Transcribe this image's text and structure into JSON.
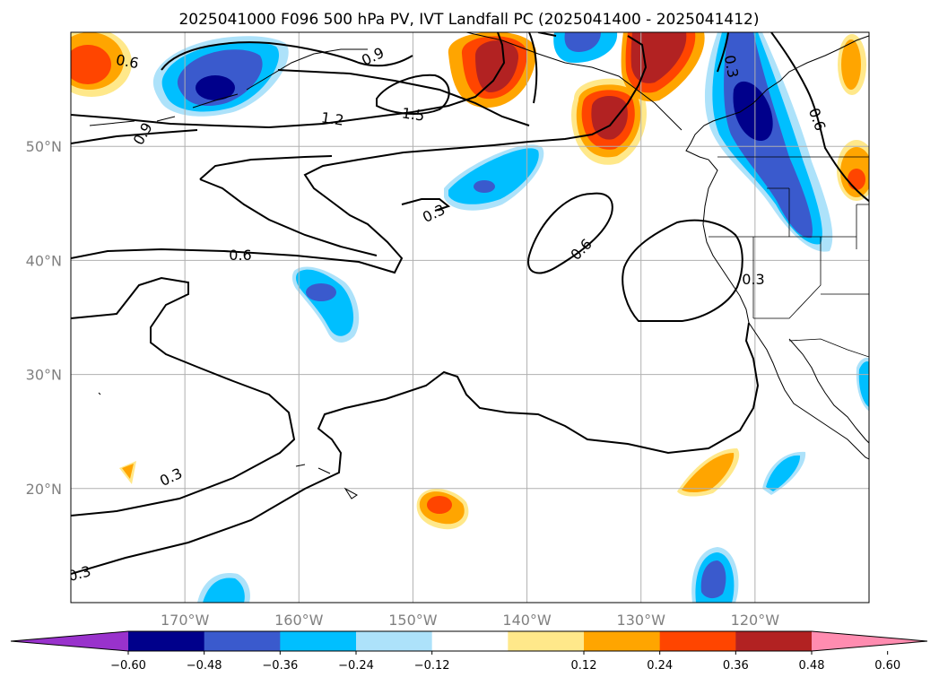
{
  "title": "2025041000 F096 500 hPa PV, IVT Landfall PC (2025041400 - 2025041412)",
  "map_extent": {
    "lon_min": -180,
    "lon_max": -110,
    "lat_min": 10,
    "lat_max": 60
  },
  "gridlines": {
    "longitudes": [
      -170,
      -160,
      -150,
      -140,
      -130,
      -120
    ],
    "latitudes": [
      20,
      30,
      40,
      50
    ],
    "lon_labels": [
      "170°W",
      "160°W",
      "150°W",
      "140°W",
      "130°W",
      "120°W"
    ],
    "lat_labels": [
      "20°N",
      "30°N",
      "40°N",
      "50°N"
    ],
    "color": "#b0b0b0"
  },
  "pv_contour_labels": [
    "0.3",
    "0.6",
    "0.9",
    "1.2",
    "1.5"
  ],
  "colorbar": {
    "ticks": [
      "−0.60",
      "−0.48",
      "−0.36",
      "−0.24",
      "−0.12",
      "0.12",
      "0.24",
      "0.36",
      "0.48",
      "0.60"
    ],
    "colors": [
      "#9932cc",
      "#00008b",
      "#3a5acd",
      "#00bfff",
      "#ade2fa",
      "#ffffff",
      "#ffe88a",
      "#ffa500",
      "#ff4500",
      "#b22222",
      "#ff8cb0"
    ],
    "extend": "both"
  }
}
